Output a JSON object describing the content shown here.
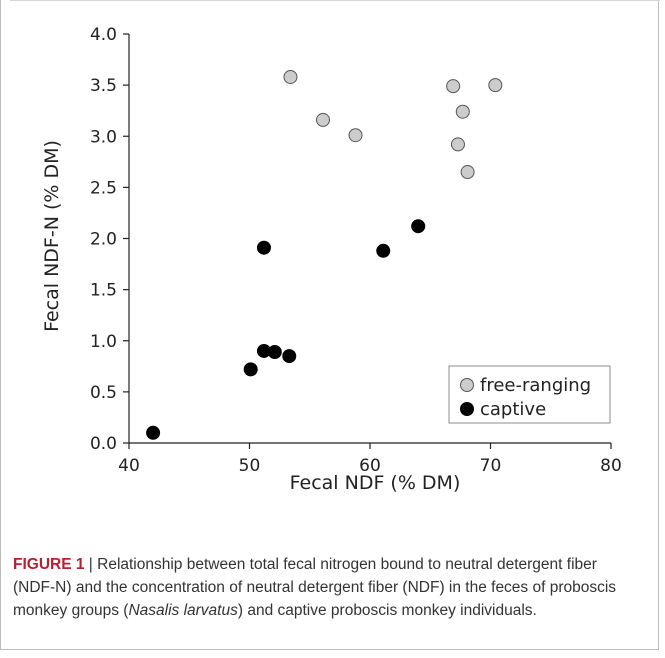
{
  "chart_data": {
    "type": "scatter",
    "xlabel": "Fecal NDF (% DM)",
    "ylabel": "Fecal NDF-N (% DM)",
    "xlim": [
      40,
      80
    ],
    "ylim": [
      0.0,
      4.0
    ],
    "x_ticks": [
      "40",
      "50",
      "60",
      "70",
      "80"
    ],
    "y_ticks": [
      "0.0",
      "0.5",
      "1.0",
      "1.5",
      "2.0",
      "2.5",
      "3.0",
      "3.5",
      "4.0"
    ],
    "legend_position": "bottom-right",
    "series": [
      {
        "name": "free-ranging",
        "marker": "circle",
        "fill": "#cccccc",
        "points": [
          [
            53.4,
            3.58
          ],
          [
            56.1,
            3.16
          ],
          [
            58.8,
            3.01
          ],
          [
            66.9,
            3.49
          ],
          [
            70.4,
            3.5
          ],
          [
            67.7,
            3.24
          ],
          [
            67.3,
            2.92
          ],
          [
            68.1,
            2.65
          ]
        ]
      },
      {
        "name": "captive",
        "marker": "circle",
        "fill": "#000000",
        "points": [
          [
            51.2,
            1.91
          ],
          [
            61.1,
            1.88
          ],
          [
            64.0,
            2.12
          ],
          [
            51.2,
            0.9
          ],
          [
            52.1,
            0.89
          ],
          [
            53.3,
            0.85
          ],
          [
            50.1,
            0.72
          ],
          [
            42.0,
            0.1
          ]
        ]
      }
    ]
  },
  "caption": {
    "lead": "FIGURE 1",
    "sep": " | ",
    "text_a": "Relationship between total fecal nitrogen bound to neutral detergent fiber (NDF-N) and the concentration of neutral detergent fiber (NDF) in the feces of proboscis monkey groups (",
    "italic": "Nasalis larvatus",
    "text_b": ") and captive proboscis monkey individuals."
  },
  "colors": {
    "axis": "#222222",
    "legend_border": "#8c8c8c",
    "point_stroke": "#555555",
    "caption_lead": "#b8202e"
  }
}
